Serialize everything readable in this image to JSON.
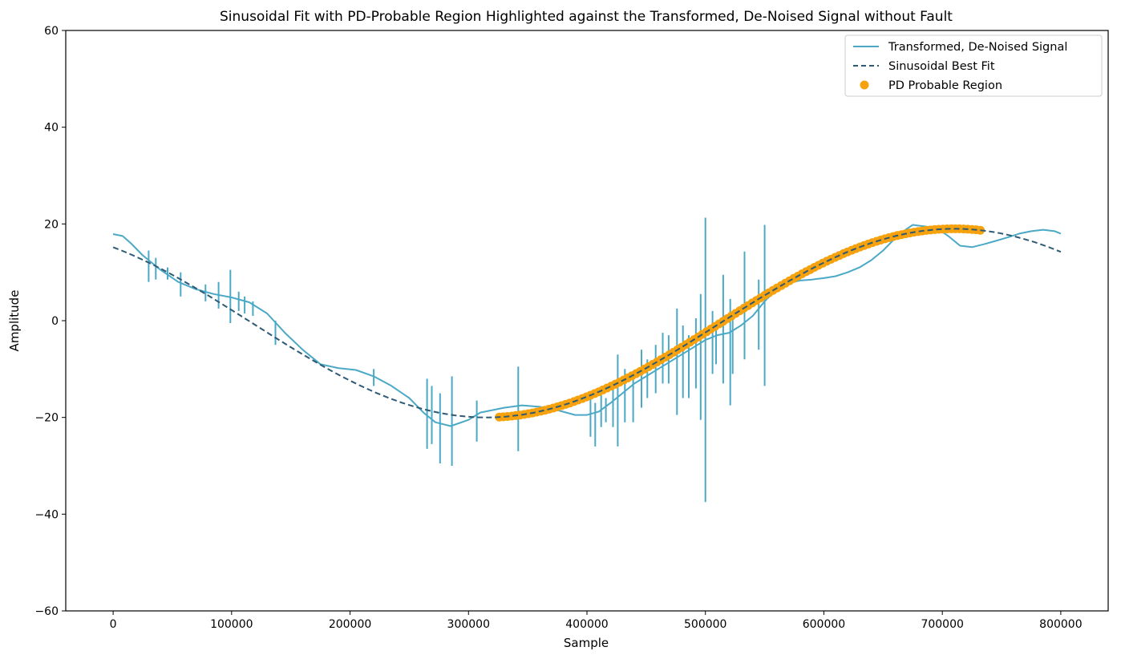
{
  "chart_data": {
    "type": "line",
    "title": "Sinusoidal Fit with PD-Probable Region Highlighted against the Transformed, De-Noised Signal without Fault",
    "xlabel": "Sample",
    "ylabel": "Amplitude",
    "xlim": [
      -40000,
      840000
    ],
    "ylim": [
      -60,
      60
    ],
    "xticks": [
      0,
      100000,
      200000,
      300000,
      400000,
      500000,
      600000,
      700000,
      800000
    ],
    "xtick_labels": [
      "0",
      "100000",
      "200000",
      "300000",
      "400000",
      "500000",
      "600000",
      "700000",
      "800000"
    ],
    "yticks": [
      -60,
      -40,
      -20,
      0,
      20,
      40,
      60
    ],
    "ytick_labels": [
      "−60",
      "−40",
      "−20",
      "0",
      "20",
      "40",
      "60"
    ],
    "grid": false,
    "legend_position": "top-right",
    "series": [
      {
        "name": "Transformed, De-Noised Signal",
        "kind": "line",
        "color": "#4ba9c6",
        "x": [
          0,
          8000,
          15000,
          25000,
          40000,
          55000,
          70000,
          85000,
          100000,
          115000,
          130000,
          145000,
          160000,
          175000,
          190000,
          205000,
          220000,
          235000,
          250000,
          262000,
          272000,
          285000,
          300000,
          310000,
          320000,
          330000,
          345000,
          360000,
          375000,
          390000,
          400000,
          410000,
          420000,
          430000,
          440000,
          450000,
          460000,
          470000,
          480000,
          490000,
          500000,
          510000,
          520000,
          530000,
          540000,
          550000,
          560000,
          570000,
          580000,
          590000,
          600000,
          610000,
          620000,
          630000,
          640000,
          650000,
          660000,
          670000,
          675000,
          685000,
          695000,
          705000,
          715000,
          725000,
          735000,
          745000,
          755000,
          765000,
          775000,
          785000,
          795000,
          800000
        ],
        "y": [
          17.9,
          17.5,
          16.0,
          13.5,
          10.5,
          8.0,
          6.5,
          5.5,
          4.8,
          3.8,
          1.5,
          -2.5,
          -6.0,
          -9.0,
          -9.8,
          -10.2,
          -11.5,
          -13.5,
          -16.0,
          -19.0,
          -21.0,
          -21.8,
          -20.5,
          -19.0,
          -18.5,
          -18.0,
          -17.5,
          -17.8,
          -18.5,
          -19.5,
          -19.5,
          -18.8,
          -17.0,
          -15.0,
          -13.0,
          -11.5,
          -10.0,
          -8.5,
          -7.0,
          -5.5,
          -4.0,
          -3.0,
          -2.5,
          -1.0,
          1.0,
          4.0,
          6.5,
          7.8,
          8.3,
          8.5,
          8.8,
          9.2,
          10.0,
          11.0,
          12.5,
          14.5,
          17.0,
          19.0,
          19.8,
          19.5,
          19.2,
          17.5,
          15.5,
          15.2,
          15.8,
          16.5,
          17.2,
          18.0,
          18.5,
          18.8,
          18.5,
          18.0
        ]
      },
      {
        "name": "Sinusoidal Best Fit",
        "kind": "dashed-line",
        "color": "#2e5a74",
        "amplitude": 19.5,
        "period": 790000,
        "x_min": 315000,
        "offset": -0.5,
        "x_range": [
          0,
          800000
        ]
      },
      {
        "name": "PD Probable Region",
        "kind": "scatter",
        "color": "#f5a20e",
        "x_range": [
          326000,
          732000
        ]
      }
    ],
    "spikes": [
      [
        30000,
        8,
        14.5
      ],
      [
        36000,
        8.5,
        13
      ],
      [
        46000,
        8.5,
        11
      ],
      [
        57000,
        5,
        10
      ],
      [
        78000,
        4,
        7.5
      ],
      [
        89000,
        2.5,
        8
      ],
      [
        99000,
        -0.5,
        10.5
      ],
      [
        106000,
        2,
        6
      ],
      [
        111000,
        1.5,
        5
      ],
      [
        118000,
        1,
        4
      ],
      [
        137000,
        -5,
        0
      ],
      [
        220000,
        -13.5,
        -10
      ],
      [
        265000,
        -26.5,
        -12
      ],
      [
        269000,
        -25.5,
        -13.5
      ],
      [
        276000,
        -29.5,
        -15
      ],
      [
        286000,
        -30,
        -11.5
      ],
      [
        307000,
        -25,
        -16.5
      ],
      [
        342000,
        -27,
        -9.5
      ],
      [
        403000,
        -24,
        -15
      ],
      [
        407000,
        -26,
        -17
      ],
      [
        412000,
        -22,
        -14
      ],
      [
        416000,
        -21,
        -16
      ],
      [
        422000,
        -22,
        -14
      ],
      [
        426000,
        -26,
        -7
      ],
      [
        432000,
        -21,
        -10
      ],
      [
        439000,
        -21,
        -11
      ],
      [
        446000,
        -18,
        -6
      ],
      [
        451000,
        -16,
        -8
      ],
      [
        458000,
        -15,
        -5
      ],
      [
        464000,
        -13,
        -2.5
      ],
      [
        469000,
        -13,
        -3
      ],
      [
        476000,
        -19.5,
        2.5
      ],
      [
        481000,
        -16,
        -1
      ],
      [
        486000,
        -16,
        -3
      ],
      [
        492000,
        -14,
        0.5
      ],
      [
        496000,
        -20.5,
        5.5
      ],
      [
        500000,
        -37.5,
        21.3
      ],
      [
        506000,
        -11,
        2
      ],
      [
        509000,
        -9,
        -1
      ],
      [
        515000,
        -13,
        9.5
      ],
      [
        521000,
        -17.5,
        4.5
      ],
      [
        523000,
        -11,
        0.5
      ],
      [
        533000,
        -8,
        14.3
      ],
      [
        545000,
        -6,
        8.5
      ],
      [
        550000,
        -13.5,
        19.8
      ]
    ]
  }
}
